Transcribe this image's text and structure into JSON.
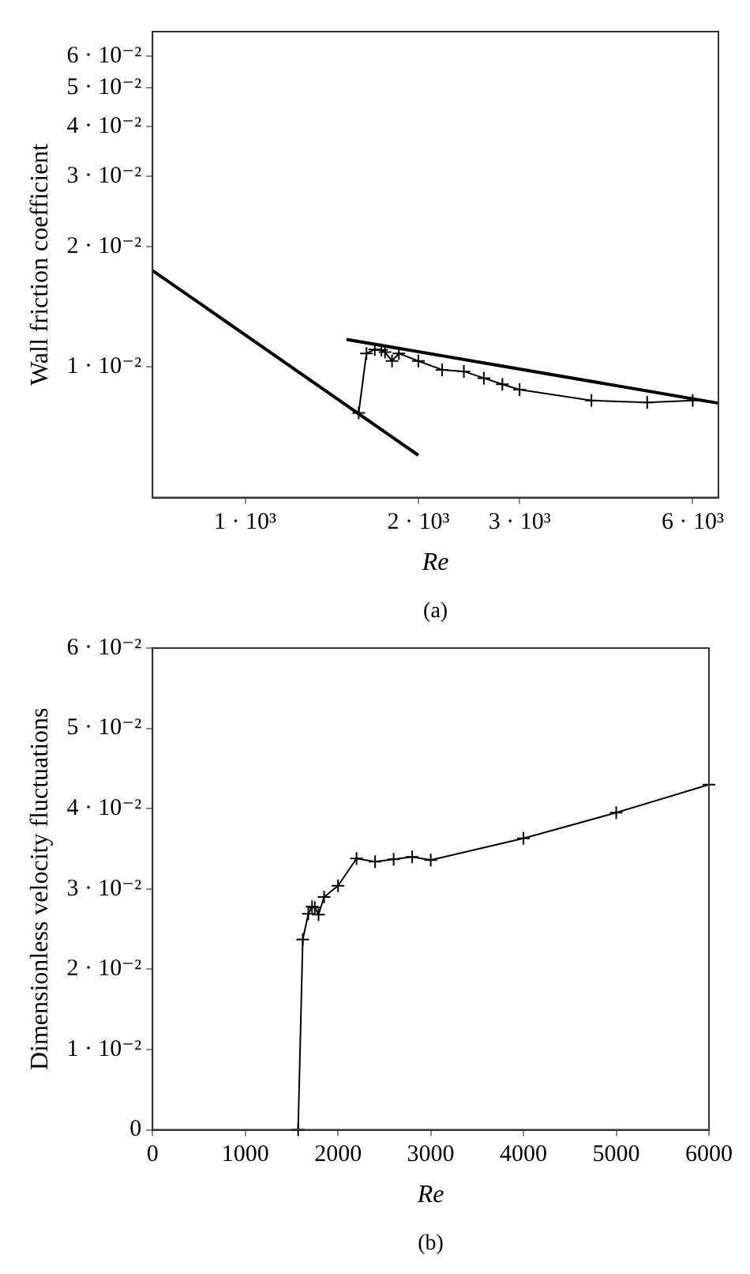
{
  "chart_data": [
    {
      "type": "line",
      "xlabel": "Re",
      "ylabel": "Wall friction coefficient",
      "log": "xy",
      "grid": false,
      "annotations": [
        "(a)"
      ],
      "xlim": [
        690,
        6650
      ],
      "ylim": [
        0.0047,
        0.069
      ],
      "xticks": [
        {
          "value": 1000,
          "label": "1 · 10³"
        },
        {
          "value": 2000,
          "label": "2 · 10³"
        },
        {
          "value": 3000,
          "label": "3 · 10³"
        },
        {
          "value": 6000,
          "label": "6 · 10³"
        }
      ],
      "yticks": [
        {
          "value": 0.01,
          "label": "1 · 10⁻²"
        },
        {
          "value": 0.02,
          "label": "2 · 10⁻²"
        },
        {
          "value": 0.03,
          "label": "3 · 10⁻²"
        },
        {
          "value": 0.04,
          "label": "4 · 10⁻²"
        },
        {
          "value": 0.05,
          "label": "5 · 10⁻²"
        },
        {
          "value": 0.06,
          "label": "6 · 10⁻²"
        }
      ],
      "series": [
        {
          "color": "#000000",
          "marker": "none",
          "x": [
            690,
            2000
          ],
          "values": [
            0.0174,
            0.006
          ]
        },
        {
          "color": "#000000",
          "marker": "none",
          "x": [
            1500,
            6650
          ],
          "values": [
            0.0117,
            0.0081
          ]
        },
        {
          "color": "#000000",
          "marker": "cross",
          "x": [
            1575,
            1625,
            1680,
            1725,
            1750,
            1800,
            1850,
            2000,
            2200,
            2400,
            2600,
            2800,
            3000,
            4000,
            5000,
            6000
          ],
          "values": [
            0.00766,
            0.01079,
            0.01104,
            0.01101,
            0.01088,
            0.01033,
            0.01079,
            0.01033,
            0.00982,
            0.00973,
            0.00936,
            0.00903,
            0.00876,
            0.00823,
            0.00813,
            0.00823
          ]
        }
      ]
    },
    {
      "type": "line",
      "xlabel": "Re",
      "ylabel": "Dimensionless velocity fluctuations",
      "grid": false,
      "annotations": [
        "(b)"
      ],
      "marker": "cross",
      "xlim": [
        0,
        6000
      ],
      "ylim": [
        0,
        0.06
      ],
      "xticks": [
        0,
        1000,
        2000,
        3000,
        4000,
        5000,
        6000
      ],
      "yticks": [
        0,
        {
          "value": 0.01,
          "label": "1 · 10⁻²"
        },
        {
          "value": 0.02,
          "label": "2 · 10⁻²"
        },
        {
          "value": 0.03,
          "label": "3 · 10⁻²"
        },
        {
          "value": 0.04,
          "label": "4 · 10⁻²"
        },
        {
          "value": 0.05,
          "label": "5 · 10⁻²"
        },
        {
          "value": 0.06,
          "label": "6 · 10⁻²"
        }
      ],
      "series": [
        {
          "color": "#000000",
          "x": [
            1570,
            1620,
            1680,
            1720,
            1750,
            1790,
            1850,
            2000,
            2200,
            2400,
            2600,
            2800,
            3000,
            4000,
            5000,
            6000
          ],
          "values": [
            0,
            0.0237,
            0.0269,
            0.0278,
            0.0277,
            0.0268,
            0.029,
            0.0304,
            0.0338,
            0.0334,
            0.0337,
            0.034,
            0.0336,
            0.0363,
            0.0395,
            0.043
          ]
        }
      ]
    }
  ]
}
